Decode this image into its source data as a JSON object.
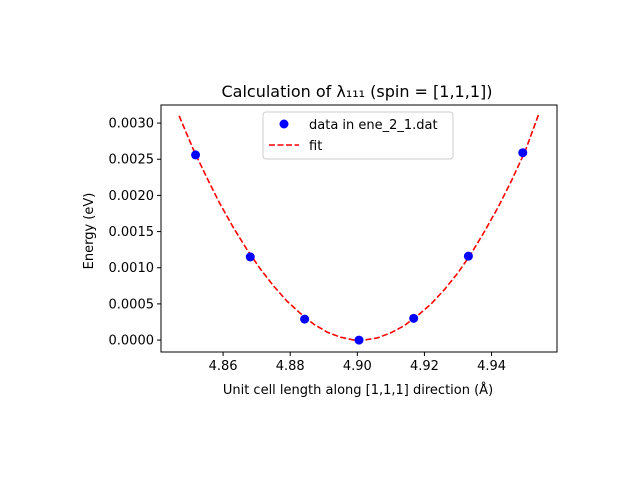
{
  "chart_data": {
    "type": "scatter",
    "title": "Calculation of λ₁₁₁ (spin = [1,1,1])",
    "xlabel": "Unit cell length along [1,1,1] direction (Å)",
    "ylabel": "Energy (eV)",
    "xlim": [
      4.8415,
      4.9595
    ],
    "ylim": [
      -0.000165,
      0.00325
    ],
    "xticks": [
      4.86,
      4.88,
      4.9,
      4.92,
      4.94
    ],
    "xtick_labels": [
      "4.86",
      "4.88",
      "4.90",
      "4.92",
      "4.94"
    ],
    "yticks": [
      0.0,
      0.0005,
      0.001,
      0.0015,
      0.002,
      0.0025,
      0.003
    ],
    "ytick_labels": [
      "0.0000",
      "0.0005",
      "0.0010",
      "0.0015",
      "0.0020",
      "0.0025",
      "0.0030"
    ],
    "grid": false,
    "legend_position": "top-center",
    "series": [
      {
        "name": "data in ene_2_1.dat",
        "kind": "points",
        "color": "#0000ff",
        "x": [
          4.8518,
          4.8681,
          4.8843,
          4.9005,
          4.9168,
          4.9331,
          4.9493
        ],
        "y": [
          0.00256,
          0.00115,
          0.00029,
          0.0,
          0.0003,
          0.00116,
          0.00259
        ]
      },
      {
        "name": "fit",
        "kind": "dashed-line",
        "color": "#ff0000",
        "x": [
          4.8469,
          4.851,
          4.855,
          4.859,
          4.863,
          4.867,
          4.871,
          4.875,
          4.879,
          4.883,
          4.887,
          4.891,
          4.895,
          4.899,
          4.9005,
          4.902,
          4.906,
          4.91,
          4.914,
          4.918,
          4.922,
          4.926,
          4.93,
          4.934,
          4.938,
          4.942,
          4.946,
          4.95,
          4.9541
        ],
        "y": [
          0.0031,
          0.00265,
          0.00226,
          0.00189,
          0.00156,
          0.00126,
          0.00099,
          0.00075,
          0.00054,
          0.00037,
          0.00022,
          0.00011,
          4e-05,
          0.0,
          0.0,
          0.0,
          3e-05,
          0.0001,
          0.0002,
          0.00034,
          0.0005,
          0.0007,
          0.00093,
          0.0012,
          0.00151,
          0.00184,
          0.00221,
          0.00261,
          0.00313
        ]
      }
    ]
  }
}
